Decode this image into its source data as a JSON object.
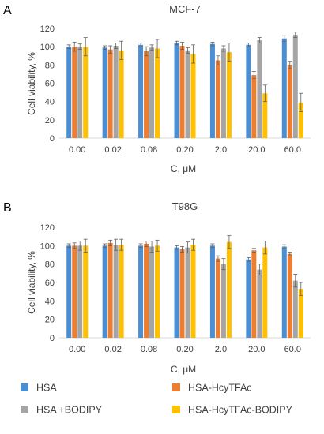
{
  "figure": {
    "legend": [
      {
        "name": "HSA",
        "color": "#4a8ed4"
      },
      {
        "name": "HSA-HcyTFAc",
        "color": "#ed7d31"
      },
      {
        "name": "HSA +BODIPY",
        "color": "#a5a5a5"
      },
      {
        "name": "HSA-HcyTFAc-BODIPY",
        "color": "#ffc000"
      }
    ]
  },
  "chart_data": [
    {
      "type": "bar",
      "panel": "A",
      "title": "MCF-7",
      "xlabel": "C, μM",
      "ylabel": "Cell viability, %",
      "ylim": [
        0,
        120
      ],
      "yticks": [
        0,
        20,
        40,
        60,
        80,
        100,
        120
      ],
      "grid": false,
      "categories": [
        "0.00",
        "0.02",
        "0.08",
        "0.20",
        "2.0",
        "20.0",
        "60.0"
      ],
      "series": [
        {
          "name": "HSA",
          "color": "#4a8ed4",
          "values": [
            100,
            99,
            102,
            104,
            103,
            102,
            109
          ],
          "errors": [
            2,
            2,
            2,
            2,
            2,
            2,
            3
          ]
        },
        {
          "name": "HSA-HcyTFAc",
          "color": "#ed7d31",
          "values": [
            100,
            97,
            95,
            101,
            85,
            69,
            80
          ],
          "errors": [
            5,
            4,
            5,
            4,
            5,
            4,
            4
          ]
        },
        {
          "name": "HSA +BODIPY",
          "color": "#a5a5a5",
          "values": [
            100,
            101,
            99,
            96,
            98,
            107,
            113
          ],
          "errors": [
            3,
            3,
            3,
            3,
            3,
            3,
            3
          ]
        },
        {
          "name": "HSA-HcyTFAc-BODIPY",
          "color": "#ffc000",
          "values": [
            100,
            96,
            98,
            92,
            94,
            49,
            39
          ],
          "errors": [
            10,
            10,
            10,
            10,
            10,
            9,
            10
          ]
        }
      ]
    },
    {
      "type": "bar",
      "panel": "B",
      "title": "T98G",
      "xlabel": "C, μM",
      "ylabel": "Cell viability, %",
      "ylim": [
        0,
        120
      ],
      "yticks": [
        0,
        20,
        40,
        60,
        80,
        100,
        120
      ],
      "grid": false,
      "categories": [
        "0.00",
        "0.02",
        "0.08",
        "0.20",
        "2.0",
        "20.0",
        "60.0"
      ],
      "series": [
        {
          "name": "HSA",
          "color": "#4a8ed4",
          "values": [
            100,
            100,
            100,
            98,
            100,
            85,
            99
          ],
          "errors": [
            2,
            2,
            2,
            2,
            2,
            2,
            2
          ]
        },
        {
          "name": "HSA-HcyTFAc",
          "color": "#ed7d31",
          "values": [
            100,
            103,
            102,
            96,
            86,
            95,
            91
          ],
          "errors": [
            3,
            3,
            3,
            3,
            3,
            2,
            2
          ]
        },
        {
          "name": "HSA +BODIPY",
          "color": "#a5a5a5",
          "values": [
            100,
            101,
            99,
            98,
            80,
            74,
            62
          ],
          "errors": [
            5,
            6,
            6,
            6,
            6,
            6,
            7
          ]
        },
        {
          "name": "HSA-HcyTFAc-BODIPY",
          "color": "#ffc000",
          "values": [
            100,
            101,
            100,
            101,
            104,
            98,
            53
          ],
          "errors": [
            7,
            6,
            6,
            6,
            7,
            7,
            7
          ]
        }
      ]
    }
  ]
}
